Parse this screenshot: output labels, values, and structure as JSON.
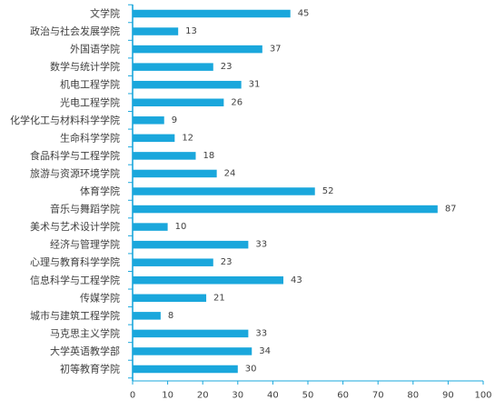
{
  "chart_data": {
    "type": "bar",
    "orientation": "horizontal",
    "title": "",
    "xlabel": "",
    "ylabel": "",
    "categories": [
      "文学院",
      "政治与社会发展学院",
      "外国语学院",
      "数学与统计学院",
      "机电工程学院",
      "光电工程学院",
      "化学化工与材料科学学院",
      "生命科学学院",
      "食品科学与工程学院",
      "旅游与资源环境学院",
      "体育学院",
      "音乐与舞蹈学院",
      "美术与艺术设计学院",
      "经济与管理学院",
      "心理与教育科学学院",
      "信息科学与工程学院",
      "传媒学院",
      "城市与建筑工程学院",
      "马克思主义学院",
      "大学英语教学部",
      "初等教育学院"
    ],
    "values": [
      45,
      13,
      37,
      23,
      31,
      26,
      9,
      12,
      18,
      24,
      52,
      87,
      10,
      33,
      23,
      43,
      21,
      8,
      33,
      34,
      30
    ],
    "xlim": [
      0,
      100
    ],
    "xticks": [
      0,
      10,
      20,
      30,
      40,
      50,
      60,
      70,
      80,
      90,
      100
    ],
    "grid": false,
    "legend": "none",
    "bar_color": "#1aa7dc",
    "axis_color": "#1aa7dc",
    "text_color": "#404040"
  }
}
